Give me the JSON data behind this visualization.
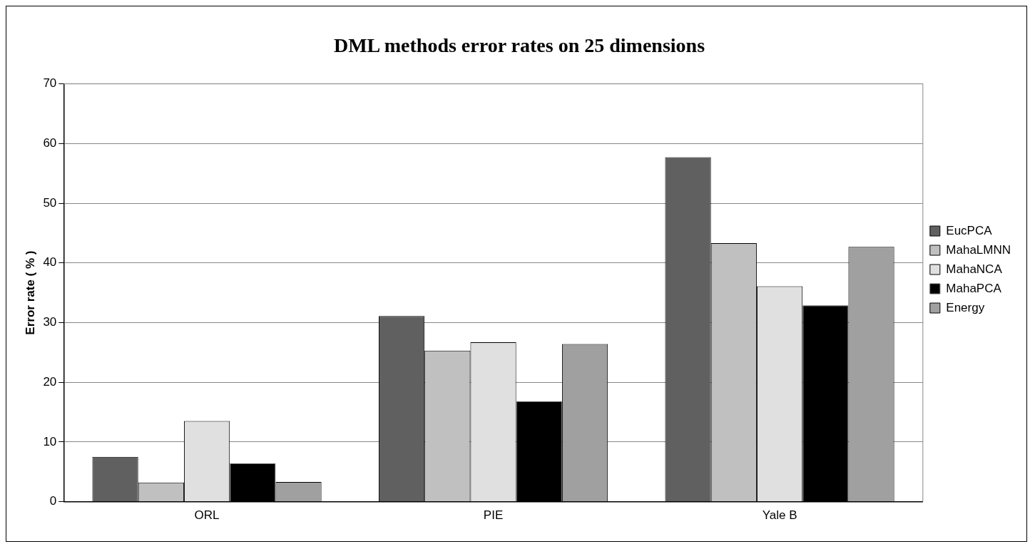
{
  "chart_data": {
    "type": "bar",
    "title": "DML methods error rates on 25 dimensions",
    "ylabel": "Error rate ( % )",
    "categories": [
      "ORL",
      "PIE",
      "Yale B"
    ],
    "series": [
      {
        "name": "EucPCA",
        "color": "#606060",
        "values": [
          7.5,
          31.1,
          57.7
        ]
      },
      {
        "name": "MahaLMNN",
        "color": "#c0c0c0",
        "values": [
          3.2,
          25.3,
          43.3
        ]
      },
      {
        "name": "MahaNCA",
        "color": "#e0e0e0",
        "values": [
          13.5,
          26.7,
          36.1
        ]
      },
      {
        "name": "MahaPCA",
        "color": "#000000",
        "values": [
          6.4,
          16.8,
          32.9
        ]
      },
      {
        "name": "Energy",
        "color": "#a0a0a0",
        "values": [
          3.3,
          26.4,
          42.7
        ]
      }
    ],
    "ylim": [
      0,
      70
    ],
    "yticks": [
      0,
      10,
      20,
      30,
      40,
      50,
      60,
      70
    ],
    "grid": "y",
    "legend": "right"
  }
}
